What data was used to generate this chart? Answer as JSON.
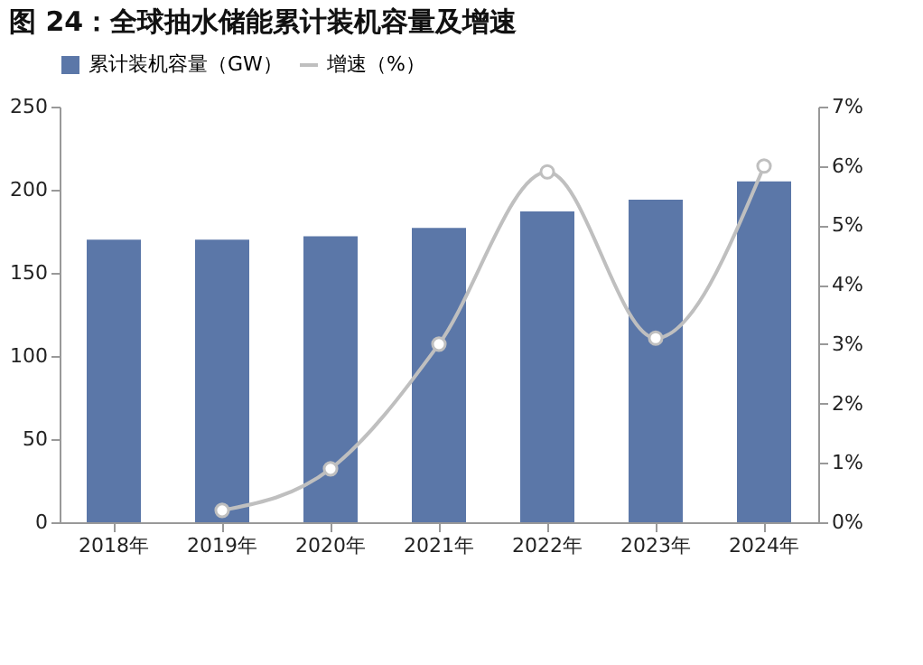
{
  "chart_data": {
    "type": "bar",
    "title": "图 24：全球抽水储能累计装机容量及增速",
    "categories": [
      "2018年",
      "2019年",
      "2020年",
      "2021年",
      "2022年",
      "2023年",
      "2024年"
    ],
    "series": [
      {
        "name": "累计装机容量（GW）",
        "color": "#5b77a8",
        "values": [
          170,
          170,
          172,
          177,
          187,
          194,
          205
        ]
      },
      {
        "name": "增速（%）",
        "type": "line",
        "axis": "y2",
        "color": "#bfbfbf",
        "marker": "circle",
        "values": [
          null,
          0.2,
          0.9,
          3.0,
          5.9,
          3.1,
          6.0
        ]
      }
    ],
    "ylim": [
      0,
      250
    ],
    "yticks": [
      0,
      50,
      100,
      150,
      200,
      250
    ],
    "y2lim": [
      0,
      7
    ],
    "y2ticks": [
      {
        "value": 0,
        "label": "0%"
      },
      {
        "value": 1,
        "label": "1%"
      },
      {
        "value": 2,
        "label": "2%"
      },
      {
        "value": 3,
        "label": "3%"
      },
      {
        "value": 4,
        "label": "4%"
      },
      {
        "value": 5,
        "label": "5%"
      },
      {
        "value": 6,
        "label": "6%"
      },
      {
        "value": 7,
        "label": "7%"
      }
    ],
    "grid": false,
    "legend": "top"
  }
}
